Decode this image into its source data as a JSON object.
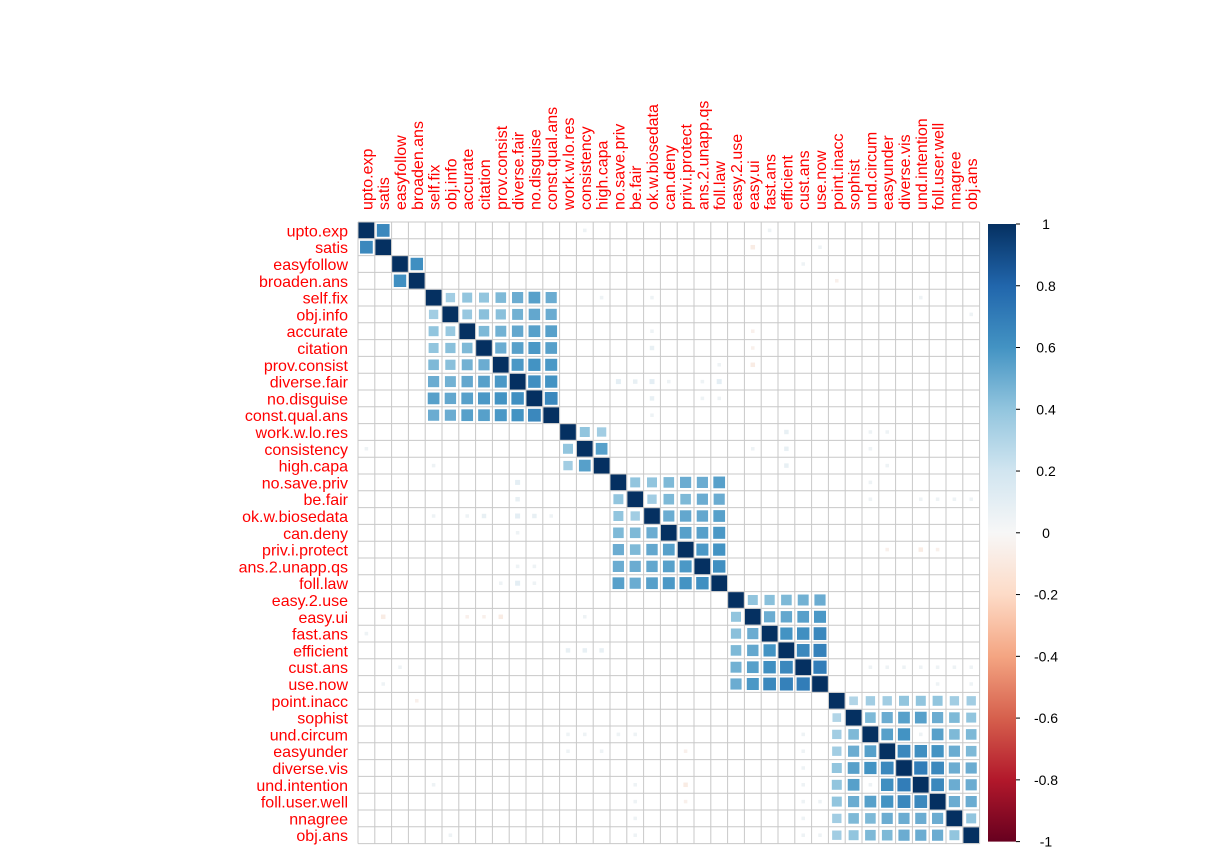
{
  "chart_data": {
    "type": "heatmap",
    "title": "",
    "variables": [
      "upto.exp",
      "satis",
      "easyfollow",
      "broaden.ans",
      "self.fix",
      "obj.info",
      "accurate",
      "citation",
      "prov.consist",
      "diverse.fair",
      "no.disguise",
      "const.qual.ans",
      "work.w.lo.res",
      "consistency",
      "high.capa",
      "no.save.priv",
      "be.fair",
      "ok.w.biosedata",
      "can.deny",
      "priv.i.protect",
      "ans.2.unapp.qs",
      "foll.law",
      "easy.2.use",
      "easy.ui",
      "fast.ans",
      "efficient",
      "cust.ans",
      "use.now",
      "point.inacc",
      "sophist",
      "und.circum",
      "easyunder",
      "diverse.vis",
      "und.intention",
      "foll.user.well",
      "nnagree",
      "obj.ans"
    ],
    "blocks": [
      {
        "name": "block-1",
        "members": [
          0,
          1
        ],
        "values": [
          [
            1,
            0.65
          ],
          [
            0.65,
            1
          ]
        ]
      },
      {
        "name": "block-2",
        "members": [
          2,
          3
        ],
        "values": [
          [
            1,
            0.62
          ],
          [
            0.62,
            1
          ]
        ]
      },
      {
        "name": "block-3",
        "members": [
          4,
          5,
          6,
          7,
          8,
          9,
          10,
          11
        ],
        "values": [
          [
            1,
            0.35,
            0.4,
            0.4,
            0.45,
            0.5,
            0.55,
            0.5
          ],
          [
            0.35,
            1,
            0.38,
            0.42,
            0.42,
            0.48,
            0.52,
            0.5
          ],
          [
            0.4,
            0.38,
            1,
            0.45,
            0.48,
            0.52,
            0.55,
            0.55
          ],
          [
            0.4,
            0.42,
            0.45,
            1,
            0.5,
            0.55,
            0.58,
            0.55
          ],
          [
            0.45,
            0.42,
            0.48,
            0.5,
            1,
            0.58,
            0.6,
            0.58
          ],
          [
            0.5,
            0.48,
            0.52,
            0.55,
            0.58,
            1,
            0.62,
            0.6
          ],
          [
            0.55,
            0.52,
            0.55,
            0.58,
            0.6,
            0.62,
            1,
            0.65
          ],
          [
            0.5,
            0.5,
            0.55,
            0.55,
            0.58,
            0.6,
            0.65,
            1
          ]
        ]
      },
      {
        "name": "block-4",
        "members": [
          12,
          13,
          14
        ],
        "values": [
          [
            1,
            0.4,
            0.35
          ],
          [
            0.4,
            1,
            0.55
          ],
          [
            0.35,
            0.55,
            1
          ]
        ]
      },
      {
        "name": "block-5",
        "members": [
          15,
          16,
          17,
          18,
          19,
          20,
          21
        ],
        "values": [
          [
            1,
            0.4,
            0.4,
            0.45,
            0.5,
            0.5,
            0.55
          ],
          [
            0.4,
            1,
            0.35,
            0.45,
            0.45,
            0.5,
            0.5
          ],
          [
            0.4,
            0.35,
            1,
            0.5,
            0.52,
            0.52,
            0.55
          ],
          [
            0.45,
            0.45,
            0.5,
            1,
            0.55,
            0.55,
            0.58
          ],
          [
            0.5,
            0.45,
            0.52,
            0.55,
            1,
            0.58,
            0.6
          ],
          [
            0.5,
            0.5,
            0.52,
            0.55,
            0.58,
            1,
            0.62
          ],
          [
            0.55,
            0.5,
            0.55,
            0.58,
            0.6,
            0.62,
            1
          ]
        ]
      },
      {
        "name": "block-6",
        "members": [
          22,
          23,
          24,
          25,
          26,
          27
        ],
        "values": [
          [
            1,
            0.4,
            0.42,
            0.45,
            0.48,
            0.5
          ],
          [
            0.4,
            1,
            0.5,
            0.52,
            0.55,
            0.58
          ],
          [
            0.42,
            0.5,
            1,
            0.6,
            0.62,
            0.65
          ],
          [
            0.45,
            0.52,
            0.6,
            1,
            0.65,
            0.68
          ],
          [
            0.48,
            0.55,
            0.62,
            0.65,
            1,
            0.7
          ],
          [
            0.5,
            0.58,
            0.65,
            0.68,
            0.7,
            1
          ]
        ]
      },
      {
        "name": "block-7",
        "members": [
          28,
          29,
          30,
          31,
          32,
          33,
          34,
          35,
          36
        ],
        "values": [
          [
            1,
            0.3,
            0.35,
            0.35,
            0.4,
            0.4,
            0.4,
            0.35,
            0.35
          ],
          [
            0.3,
            1,
            0.45,
            0.5,
            0.55,
            0.55,
            0.5,
            0.45,
            0.4
          ],
          [
            0.35,
            0.45,
            1,
            0.55,
            0.6,
            0.6,
            0.55,
            0.45,
            0.45
          ],
          [
            0.35,
            0.5,
            0.55,
            1,
            0.65,
            0.62,
            0.6,
            0.5,
            0.45
          ],
          [
            0.4,
            0.55,
            0.6,
            0.65,
            1,
            0.7,
            0.65,
            0.5,
            0.5
          ],
          [
            0.4,
            0.55,
            0.6,
            0.62,
            0.7,
            1,
            0.65,
            0.5,
            0.5
          ],
          [
            0.4,
            0.5,
            0.55,
            0.6,
            0.65,
            0.65,
            1,
            0.5,
            0.5
          ],
          [
            0.35,
            0.45,
            0.45,
            0.5,
            0.5,
            0.5,
            0.5,
            1,
            0.4
          ],
          [
            0.35,
            0.4,
            0.45,
            0.45,
            0.5,
            0.5,
            0.5,
            0.4,
            1
          ]
        ]
      }
    ],
    "weak_cells": [
      [
        0,
        13,
        0.05
      ],
      [
        0,
        24,
        0.05
      ],
      [
        1,
        23,
        -0.08
      ],
      [
        1,
        27,
        0.05
      ],
      [
        2,
        26,
        0.05
      ],
      [
        3,
        28,
        -0.05
      ],
      [
        4,
        14,
        0.05
      ],
      [
        4,
        17,
        0.05
      ],
      [
        5,
        36,
        0.05
      ],
      [
        6,
        17,
        0.05
      ],
      [
        7,
        17,
        0.08
      ],
      [
        8,
        21,
        0.05
      ],
      [
        9,
        15,
        0.1
      ],
      [
        9,
        16,
        0.08
      ],
      [
        9,
        17,
        0.1
      ],
      [
        9,
        18,
        0.05
      ],
      [
        9,
        20,
        0.08
      ],
      [
        9,
        21,
        0.05
      ],
      [
        10,
        17,
        0.05
      ],
      [
        13,
        23,
        0.05
      ],
      [
        13,
        25,
        0.08
      ],
      [
        14,
        25,
        0.08
      ],
      [
        16,
        30,
        0.05
      ],
      [
        16,
        33,
        0.05
      ],
      [
        16,
        34,
        0.05
      ],
      [
        16,
        36,
        0.05
      ],
      [
        17,
        4,
        0.05
      ],
      [
        17,
        9,
        0.1
      ],
      [
        17,
        10,
        0.08
      ],
      [
        17,
        11,
        0.05
      ],
      [
        19,
        33,
        -0.08
      ],
      [
        20,
        9,
        0.05
      ],
      [
        20,
        10,
        0.05
      ],
      [
        21,
        9,
        0.1
      ],
      [
        21,
        10,
        0.05
      ],
      [
        23,
        6,
        -0.05
      ],
      [
        23,
        7,
        -0.05
      ],
      [
        23,
        8,
        -0.08
      ],
      [
        25,
        12,
        0.08
      ],
      [
        25,
        13,
        0.08
      ],
      [
        25,
        14,
        0.08
      ],
      [
        26,
        30,
        0.05
      ],
      [
        26,
        31,
        0.05
      ],
      [
        26,
        32,
        0.05
      ],
      [
        26,
        33,
        0.05
      ],
      [
        26,
        34,
        0.05
      ],
      [
        26,
        35,
        0.05
      ],
      [
        26,
        36,
        0.05
      ],
      [
        30,
        12,
        0.05
      ],
      [
        30,
        13,
        0.05
      ],
      [
        30,
        15,
        0.05
      ],
      [
        31,
        12,
        0.05
      ],
      [
        31,
        14,
        0.05
      ],
      [
        31,
        19,
        -0.05
      ],
      [
        33,
        4,
        0.05
      ],
      [
        33,
        16,
        0.05
      ],
      [
        33,
        30,
        0.05
      ],
      [
        34,
        16,
        0.05
      ],
      [
        34,
        19,
        -0.05
      ],
      [
        34,
        27,
        0.05
      ],
      [
        35,
        16,
        0.05
      ],
      [
        36,
        27,
        0.05
      ]
    ],
    "legend": {
      "placement": "right",
      "ticks": [
        "1",
        "0.8",
        "0.6",
        "0.4",
        "0.2",
        "0",
        "-0.2",
        "-0.4",
        "-0.6",
        "-0.8",
        "-1"
      ],
      "range": [
        -1,
        1
      ]
    },
    "label_color": "#ff0000",
    "colors": {
      "neg_dark": "#67001f",
      "neg_mid": "#d6604d",
      "neutral": "#f7f7f7",
      "pos_mid": "#4393c3",
      "pos_dark": "#053061",
      "grid": "#c8c8c8"
    }
  }
}
